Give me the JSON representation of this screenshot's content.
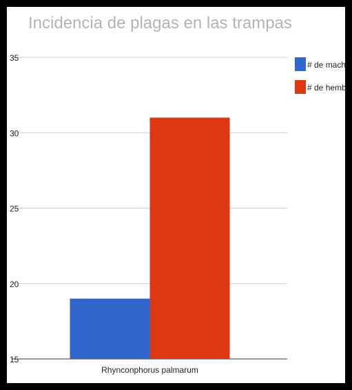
{
  "chart_data": {
    "type": "bar",
    "title": "Incidencia de plagas en las trampas",
    "xlabel": "",
    "ylabel": "",
    "categories": [
      "Rhynconphorus palmarum"
    ],
    "series": [
      {
        "name": "# de machos",
        "values": [
          19
        ],
        "color": "#3366cc"
      },
      {
        "name": "# de hembras",
        "values": [
          31
        ],
        "color": "#dc3912"
      }
    ],
    "ylim": [
      15,
      35
    ],
    "yticks": [
      15,
      20,
      25,
      30,
      35
    ],
    "ytick_labels": [
      "15",
      "20",
      "25",
      "30",
      "35"
    ],
    "grid": true,
    "legend_position": "right"
  }
}
